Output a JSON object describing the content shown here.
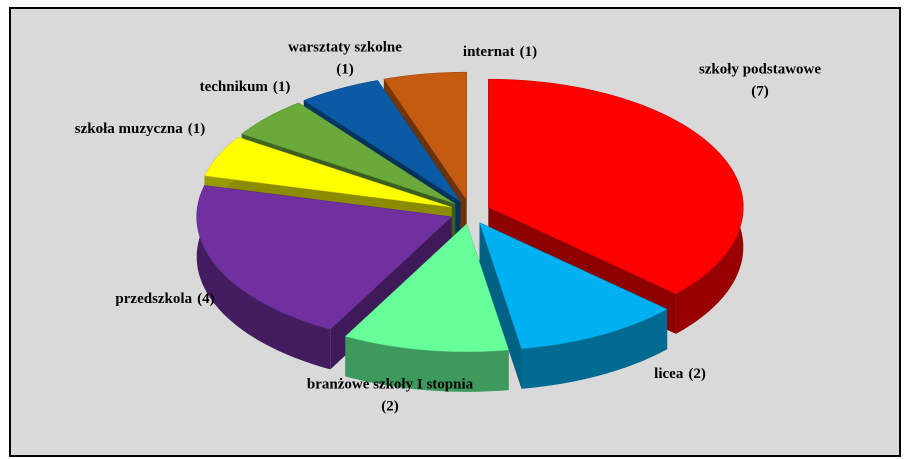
{
  "chart_data": {
    "type": "pie3d",
    "categories": [
      "szkoły podstawowe",
      "licea",
      "branżowe szkoły I stopnia",
      "przedszkola",
      "szkoła muzyczna",
      "technikum",
      "warsztaty szkolne",
      "internat"
    ],
    "values": [
      7,
      2,
      2,
      4,
      1,
      1,
      1,
      1
    ],
    "value_labels": [
      "(7)",
      "(2)",
      "(2)",
      "(4)",
      "(1)",
      "(1)",
      "(1)",
      "(1)"
    ],
    "colors": [
      "#ff0000",
      "#00b0f0",
      "#66ff99",
      "#7030a0",
      "#ffff00",
      "#6aaa3a",
      "#0b5aa6",
      "#c55a11"
    ]
  }
}
